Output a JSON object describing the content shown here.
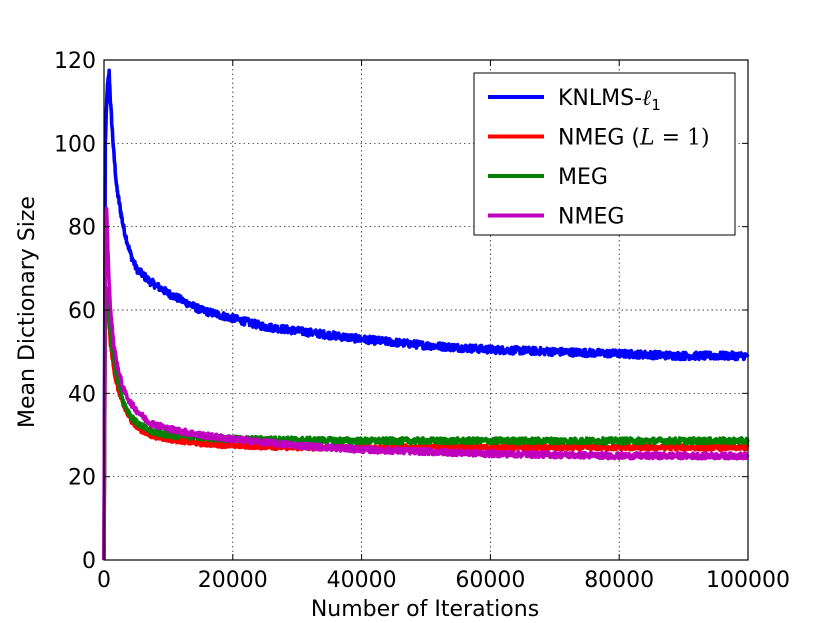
{
  "chart_data": {
    "type": "line",
    "title": "",
    "xlabel": "Number of Iterations",
    "ylabel": "Mean Dictionary Size",
    "xlim": [
      0,
      100000
    ],
    "ylim": [
      0,
      120
    ],
    "xticks": [
      0,
      20000,
      40000,
      60000,
      80000,
      100000
    ],
    "xtick_labels": [
      "0",
      "20000",
      "40000",
      "60000",
      "80000",
      "100000"
    ],
    "yticks": [
      0,
      20,
      40,
      60,
      80,
      100,
      120
    ],
    "ytick_labels": [
      "0",
      "20",
      "40",
      "60",
      "80",
      "100",
      "120"
    ],
    "grid": true,
    "legend_position": "top-right",
    "series": [
      {
        "name": "KNLMS-ℓ1",
        "legend_main": "KNLMS-",
        "legend_math": "ℓ",
        "legend_sub": "1",
        "color": "#0000ff",
        "noise": 0.9,
        "x": [
          0,
          200,
          500,
          800,
          1000,
          1500,
          2000,
          3000,
          4000,
          5000,
          7000,
          10000,
          15000,
          20000,
          25000,
          30000,
          35000,
          40000,
          50000,
          60000,
          70000,
          80000,
          90000,
          100000
        ],
        "y": [
          0,
          100,
          113,
          117,
          110,
          98,
          89,
          80,
          74,
          70,
          67,
          64,
          60,
          58,
          56,
          55,
          54,
          53,
          51.5,
          50.5,
          50,
          49.5,
          49,
          49
        ]
      },
      {
        "name": "NMEG (L = 1)",
        "legend_main": "NMEG (",
        "legend_math": "L",
        "legend_mid": " = 1)",
        "color": "#ff0000",
        "noise": 0.6,
        "x": [
          0,
          200,
          400,
          700,
          1000,
          1500,
          2000,
          3000,
          4000,
          5000,
          7000,
          10000,
          15000,
          20000,
          30000,
          40000,
          60000,
          80000,
          100000
        ],
        "y": [
          0,
          60,
          63,
          58,
          52,
          46,
          42,
          37,
          34,
          32,
          30,
          29,
          28,
          27.5,
          27,
          27,
          27,
          27,
          27
        ]
      },
      {
        "name": "MEG",
        "legend_main": "MEG",
        "color": "#008000",
        "noise": 0.7,
        "x": [
          0,
          200,
          400,
          700,
          1000,
          1500,
          2000,
          3000,
          4000,
          5000,
          7000,
          10000,
          15000,
          20000,
          30000,
          40000,
          60000,
          80000,
          100000
        ],
        "y": [
          0,
          62,
          65,
          60,
          54,
          48,
          44,
          38,
          35,
          33,
          31,
          30,
          29.5,
          29,
          28.8,
          28.6,
          28.6,
          28.6,
          28.6
        ]
      },
      {
        "name": "NMEG",
        "legend_main": "NMEG",
        "color": "#bf00bf",
        "noise": 0.7,
        "x": [
          0,
          200,
          400,
          700,
          1000,
          1500,
          2000,
          3000,
          4000,
          5000,
          7000,
          10000,
          15000,
          20000,
          30000,
          40000,
          60000,
          80000,
          100000
        ],
        "y": [
          0,
          78,
          84,
          70,
          60,
          52,
          47,
          41,
          38,
          36,
          33,
          31.5,
          30,
          29,
          27.5,
          26.5,
          25.5,
          25,
          25
        ]
      }
    ]
  }
}
